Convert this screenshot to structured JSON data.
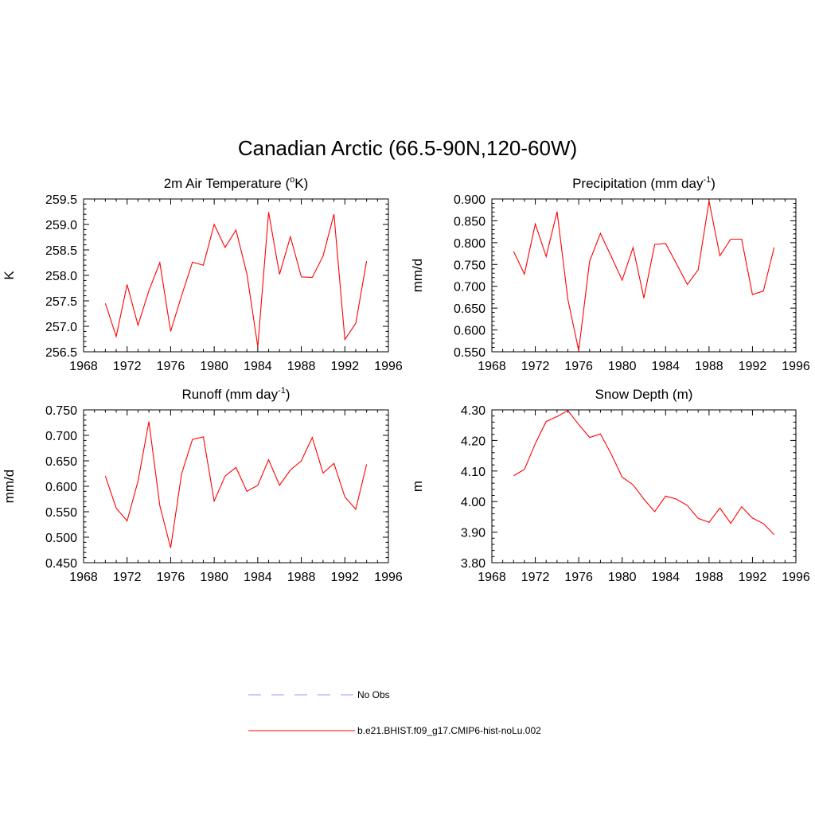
{
  "figure": {
    "title": "Canadian Arctic (66.5-90N,120-60W)"
  },
  "colors": {
    "model_line": "#ff0000",
    "obs_line": "#9999ff",
    "axis": "#000000"
  },
  "legend": {
    "entries": [
      {
        "label": "No Obs",
        "style": "dashed",
        "color": "#9999ff"
      },
      {
        "label": "b.e21.BHIST.f09_g17.CMIP6-hist-noLu.002",
        "style": "solid",
        "color": "#ff0000"
      }
    ]
  },
  "chart_data": [
    {
      "type": "line",
      "title": "2m Air Temperature (",
      "title_sup": "o",
      "title_tail": "K)",
      "xlabel": "",
      "ylabel": "K",
      "xlim": [
        1968,
        1996
      ],
      "xticks": [
        1968,
        1972,
        1976,
        1980,
        1984,
        1988,
        1992,
        1996
      ],
      "ylim": [
        256.5,
        259.5
      ],
      "yticks": [
        256.5,
        257.0,
        257.5,
        258.0,
        258.5,
        259.0,
        259.5
      ],
      "ytick_labels": [
        "256.5",
        "257.0",
        "257.5",
        "258.0",
        "258.5",
        "259.0",
        "259.5"
      ],
      "x": [
        1970,
        1971,
        1972,
        1973,
        1974,
        1975,
        1976,
        1977,
        1978,
        1979,
        1980,
        1981,
        1982,
        1983,
        1984,
        1985,
        1986,
        1987,
        1988,
        1989,
        1990,
        1991,
        1992,
        1993,
        1994
      ],
      "series": [
        {
          "name": "b.e21.BHIST.f09_g17.CMIP6-hist-noLu.002",
          "values": [
            257.45,
            256.8,
            257.82,
            257.02,
            257.7,
            258.25,
            256.9,
            257.6,
            258.26,
            258.2,
            259.0,
            258.55,
            258.89,
            258.03,
            256.6,
            259.24,
            258.02,
            258.76,
            257.97,
            257.96,
            258.38,
            259.2,
            256.74,
            257.06,
            258.28
          ]
        }
      ]
    },
    {
      "type": "line",
      "title": "Precipitation (mm day",
      "title_sup": "-1",
      "title_tail": ")",
      "xlabel": "",
      "ylabel": "mm/d",
      "xlim": [
        1968,
        1996
      ],
      "xticks": [
        1968,
        1972,
        1976,
        1980,
        1984,
        1988,
        1992,
        1996
      ],
      "ylim": [
        0.55,
        0.9
      ],
      "yticks": [
        0.55,
        0.6,
        0.65,
        0.7,
        0.75,
        0.8,
        0.85,
        0.9
      ],
      "ytick_labels": [
        "0.550",
        "0.600",
        "0.650",
        "0.700",
        "0.750",
        "0.800",
        "0.850",
        "0.900"
      ],
      "x": [
        1970,
        1971,
        1972,
        1973,
        1974,
        1975,
        1976,
        1977,
        1978,
        1979,
        1980,
        1981,
        1982,
        1983,
        1984,
        1985,
        1986,
        1987,
        1988,
        1989,
        1990,
        1991,
        1992,
        1993,
        1994
      ],
      "series": [
        {
          "name": "b.e21.BHIST.f09_g17.CMIP6-hist-noLu.002",
          "values": [
            0.78,
            0.728,
            0.843,
            0.768,
            0.871,
            0.67,
            0.553,
            0.757,
            0.821,
            0.768,
            0.714,
            0.789,
            0.673,
            0.796,
            0.798,
            0.752,
            0.704,
            0.738,
            0.895,
            0.77,
            0.808,
            0.808,
            0.681,
            0.689,
            0.789
          ]
        }
      ]
    },
    {
      "type": "line",
      "title": "Runoff (mm day",
      "title_sup": "-1",
      "title_tail": ")",
      "xlabel": "",
      "ylabel": "mm/d",
      "xlim": [
        1968,
        1996
      ],
      "xticks": [
        1968,
        1972,
        1976,
        1980,
        1984,
        1988,
        1992,
        1996
      ],
      "ylim": [
        0.45,
        0.75
      ],
      "yticks": [
        0.45,
        0.5,
        0.55,
        0.6,
        0.65,
        0.7,
        0.75
      ],
      "ytick_labels": [
        "0.450",
        "0.500",
        "0.550",
        "0.600",
        "0.650",
        "0.700",
        "0.750"
      ],
      "x": [
        1970,
        1971,
        1972,
        1973,
        1974,
        1975,
        1976,
        1977,
        1978,
        1979,
        1980,
        1981,
        1982,
        1983,
        1984,
        1985,
        1986,
        1987,
        1988,
        1989,
        1990,
        1991,
        1992,
        1993,
        1994
      ],
      "series": [
        {
          "name": "b.e21.BHIST.f09_g17.CMIP6-hist-noLu.002",
          "values": [
            0.62,
            0.557,
            0.532,
            0.61,
            0.727,
            0.562,
            0.479,
            0.624,
            0.692,
            0.697,
            0.571,
            0.62,
            0.637,
            0.59,
            0.602,
            0.652,
            0.602,
            0.632,
            0.65,
            0.696,
            0.626,
            0.645,
            0.579,
            0.555,
            0.643
          ]
        }
      ]
    },
    {
      "type": "line",
      "title": "Snow Depth (m)",
      "title_sup": "",
      "title_tail": "",
      "xlabel": "",
      "ylabel": "m",
      "xlim": [
        1968,
        1996
      ],
      "xticks": [
        1968,
        1972,
        1976,
        1980,
        1984,
        1988,
        1992,
        1996
      ],
      "ylim": [
        3.8,
        4.3
      ],
      "yticks": [
        3.8,
        3.9,
        4.0,
        4.1,
        4.2,
        4.3
      ],
      "ytick_labels": [
        "3.80",
        "3.90",
        "4.00",
        "4.10",
        "4.20",
        "4.30"
      ],
      "x": [
        1970,
        1971,
        1972,
        1973,
        1974,
        1975,
        1976,
        1977,
        1978,
        1979,
        1980,
        1981,
        1982,
        1983,
        1984,
        1985,
        1986,
        1987,
        1988,
        1989,
        1990,
        1991,
        1992,
        1993,
        1994
      ],
      "series": [
        {
          "name": "b.e21.BHIST.f09_g17.CMIP6-hist-noLu.002",
          "values": [
            4.085,
            4.105,
            4.19,
            4.262,
            4.278,
            4.298,
            4.252,
            4.21,
            4.221,
            4.155,
            4.08,
            4.055,
            4.008,
            3.967,
            4.018,
            4.008,
            3.987,
            3.945,
            3.932,
            3.979,
            3.929,
            3.983,
            3.946,
            3.928,
            3.892
          ]
        }
      ]
    }
  ]
}
